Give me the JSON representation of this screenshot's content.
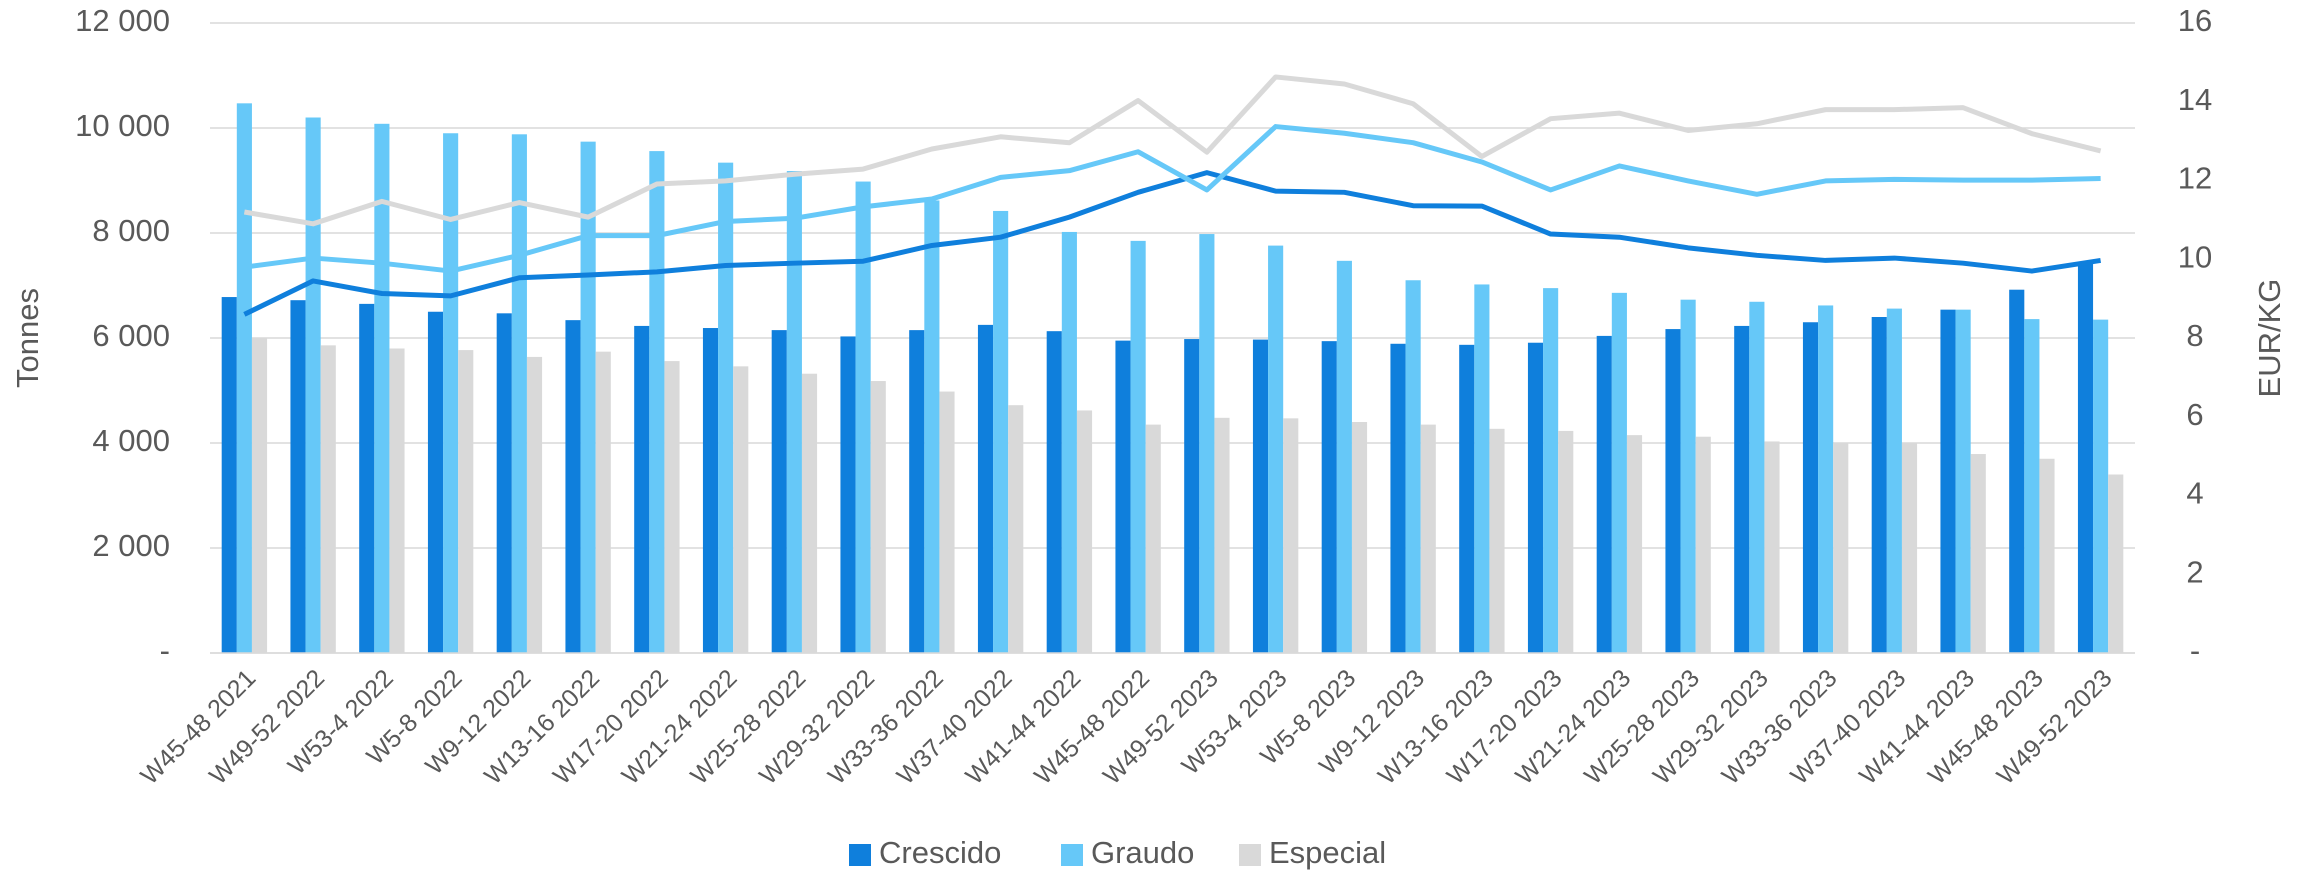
{
  "chart_data": {
    "type": "bar_line",
    "y_label": "Tonnes",
    "y2_label": "EUR/KG",
    "categories": [
      "W45-48 2021",
      "W49-52 2022",
      "W53-4 2022",
      "W5-8 2022",
      "W9-12 2022",
      "W13-16 2022",
      "W17-20 2022",
      "W21-24 2022",
      "W25-28 2022",
      "W29-32 2022",
      "W33-36 2022",
      "W37-40 2022",
      "W41-44 2022",
      "W45-48 2022",
      "W49-52 2023",
      "W53-4 2023",
      "W5-8 2023",
      "W9-12 2023",
      "W13-16 2023",
      "W17-20 2023",
      "W21-24 2023",
      "W25-28 2023",
      "W29-32 2023",
      "W33-36 2023",
      "W37-40 2023",
      "W41-44 2023",
      "W45-48 2023",
      "W49-52 2023"
    ],
    "series": [
      {
        "name": "Crescido",
        "color": "#0f7fdc",
        "values": [
          6780,
          6720,
          6650,
          6500,
          6470,
          6340,
          6230,
          6190,
          6150,
          6030,
          6150,
          6250,
          6130,
          5950,
          5980,
          5970,
          5940,
          5890,
          5870,
          5910,
          6040,
          6170,
          6230,
          6300,
          6400,
          6540,
          6920,
          7450
        ],
        "price_values": [
          8.6,
          9.45,
          9.13,
          9.07,
          9.53,
          9.6,
          9.68,
          9.84,
          9.9,
          9.95,
          10.35,
          10.56,
          11.07,
          11.7,
          12.2,
          11.73,
          11.7,
          11.36,
          11.35,
          10.64,
          10.56,
          10.29,
          10.1,
          9.97,
          10.03,
          9.9,
          9.7,
          9.97
        ],
        "price_axis": "y2"
      },
      {
        "name": "Graudo",
        "color": "#66c8f8",
        "values": [
          10470,
          10200,
          10080,
          9900,
          9880,
          9740,
          9560,
          9340,
          9180,
          8980,
          8620,
          8420,
          8020,
          7850,
          7980,
          7760,
          7470,
          7100,
          7020,
          6950,
          6860,
          6730,
          6690,
          6620,
          6560,
          6540,
          6360,
          6350
        ],
        "price_values": [
          9.8,
          10.03,
          9.9,
          9.7,
          10.1,
          10.6,
          10.6,
          10.96,
          11.04,
          11.33,
          11.53,
          12.08,
          12.25,
          12.73,
          11.76,
          13.37,
          13.2,
          12.96,
          12.47,
          11.76,
          12.37,
          11.99,
          11.65,
          11.99,
          12.03,
          12.01,
          12.01,
          12.05
        ],
        "price_axis": "y2"
      },
      {
        "name": "Especial",
        "color": "#d9d9d9",
        "values": [
          6000,
          5860,
          5800,
          5770,
          5640,
          5740,
          5560,
          5460,
          5320,
          5180,
          4980,
          4720,
          4620,
          4350,
          4480,
          4470,
          4400,
          4350,
          4270,
          4230,
          4150,
          4120,
          4030,
          4000,
          4000,
          3790,
          3700,
          3400
        ],
        "price_values": [
          11.2,
          10.9,
          11.47,
          11.01,
          11.44,
          11.07,
          11.91,
          11.99,
          12.16,
          12.29,
          12.8,
          13.11,
          12.96,
          14.03,
          12.72,
          14.63,
          14.45,
          13.95,
          12.61,
          13.57,
          13.71,
          13.27,
          13.44,
          13.8,
          13.8,
          13.85,
          13.19,
          12.75
        ],
        "price_axis": "y2"
      }
    ],
    "ylim": [
      0,
      12000
    ],
    "yticks": [
      {
        "value": 0,
        "label": "-"
      },
      {
        "value": 2000,
        "label": "2 000"
      },
      {
        "value": 4000,
        "label": "4 000"
      },
      {
        "value": 6000,
        "label": "6 000"
      },
      {
        "value": 8000,
        "label": "8 000"
      },
      {
        "value": 10000,
        "label": "10 000"
      },
      {
        "value": 12000,
        "label": "12 000"
      }
    ],
    "y2lim": [
      0,
      16
    ],
    "y2ticks": [
      {
        "value": 0,
        "label": "-"
      },
      2,
      4,
      6,
      8,
      10,
      12,
      14,
      16
    ],
    "grid": true,
    "legend": "bottom"
  }
}
